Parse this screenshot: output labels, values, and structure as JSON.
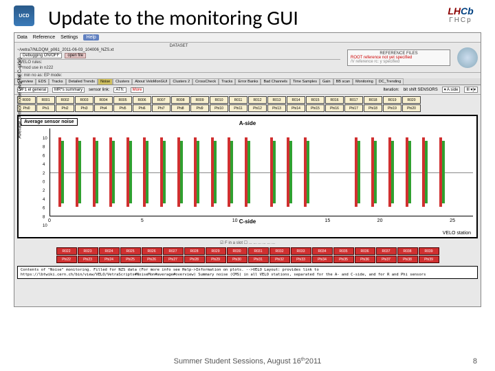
{
  "title": "Update to the monitoring GUI",
  "logos": {
    "ucd": "UCD",
    "lhcb_chars": [
      "L",
      "H",
      "C",
      "b"
    ],
    "lhcb_sub": "ГНСр"
  },
  "menubar": {
    "items": [
      "Data",
      "Reference",
      "Settings"
    ],
    "help": "Help"
  },
  "dataset": {
    "label": "DATASET",
    "path": "~/vetra7/NLDQM_p061_2011-06-03_104006_NZS.xt"
  },
  "reference": {
    "title": "REFERENCE FILES",
    "red": "ROOT reference not yet specified",
    "gray": "/V reference rc: y specified"
  },
  "subbar": {
    "onoff": "Debugging ON/OFF",
    "open": "open file",
    "velo": "VELO rules:",
    "mod": "[*mod use in n222"
  },
  "status": "sp: min no as:    EP mode:",
  "tabs": [
    "Overview",
    "EDS",
    "Tracks",
    "Detailed Trends",
    "Noise",
    "Clusters",
    "About  VeloMonGUI",
    "Clusters 2",
    "CrossCheck",
    "Tracks",
    "Error Banks",
    "Bad Channels",
    "Time Samples",
    "Gain",
    "BB scan",
    "Monitoring",
    "DC_Trending"
  ],
  "active_tab": 4,
  "ctl": {
    "v1": "VF1 el general",
    "v2": "MR*s summary",
    "sect": "sensor  link:",
    "all": "ATh:",
    "more": "More",
    "sr": "Iteration:",
    "bs": "bit shift SENSORS",
    "aside": "▾ A side",
    "ill": "Ill ▾|▾"
  },
  "sensors_top": {
    "count": 21,
    "row1_prefix": "R0",
    "row2_prefix": "Phi"
  },
  "plot": {
    "title_box": "Average sensor noise",
    "ylabel": "Average sensor noise (avg for C-side)",
    "a_side": "A-side",
    "c_side": "C-side",
    "xlabel": "VELO station",
    "yticks": [
      "10",
      "8",
      "6",
      "4",
      "2",
      "0",
      "2",
      "4",
      "6",
      "8",
      "10"
    ],
    "xticks": [
      {
        "p": 0,
        "l": "0"
      },
      {
        "p": 23,
        "l": "5"
      },
      {
        "p": 46,
        "l": "10"
      },
      {
        "p": 69,
        "l": "15"
      },
      {
        "p": 82,
        "l": "20"
      },
      {
        "p": 100,
        "l": "25"
      }
    ],
    "bar_positions": [
      2,
      6,
      10,
      14,
      18,
      22,
      26,
      30,
      34,
      38,
      42,
      46,
      52,
      56,
      60,
      72,
      76,
      80,
      84,
      88,
      92
    ],
    "bar_colors": {
      "red": "#d03030",
      "green": "#30a030"
    }
  },
  "options": "☑ F in a slot        ☐ ... ... ... ... ... ...",
  "red_sensors": {
    "count": 18,
    "prefix_r": "R0",
    "prefix_p": "Phi"
  },
  "footer_text": "Contents of \"Noise\" monitoring. Filled for NZS data\n(For more info see Help->Information on plots. -->VELO Layout: provides link to https://lbtwiki.cern.ch/bin/view/VELO/VetraScripts#NoiseMon#average#overview)\nSummary noise (CMS) in all VELO stations, separated for the A- and C-side, and for R and Phi sensors",
  "slide_footer": "Summer Student Sessions, August 16",
  "slide_footer_sup": "th",
  "slide_footer_year": " 2011",
  "slide_number": "8"
}
